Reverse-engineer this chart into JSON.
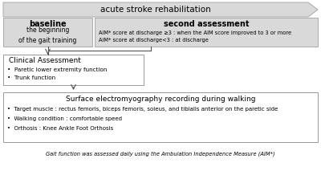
{
  "title_arrow": "acute stroke rehabilitation",
  "box1_title": "baseline",
  "box1_sub": "the beginning\nof the gait training",
  "box2_title": "second assessment",
  "box2_line1": "AIM* score at discharge ≥3 : when the AIM score improved to 3 or more",
  "box2_line2": "AIM* score at discharge<3 : at discharge",
  "box3_title": "Clinical Assessment",
  "box3_bullets": [
    "Paretic lower extremity function",
    "Trunk function"
  ],
  "box4_title": "Surface electromyography recording during walking",
  "box4_bullets": [
    "Target muscle : rectus femoris, biceps femoris, soleus, and tibialis anterior on the paretic side",
    "Walking condition : comfortable speed",
    "Orthosis : Knee Ankle Foot Orthosis"
  ],
  "footer": "Gait function was assessed daily using the Ambulation Independence Measure (AIM*)",
  "bg_color": "#ffffff",
  "arrow_fill": "#d9d9d9",
  "arrow_edge": "#aaaaaa",
  "box_edge": "#999999",
  "box_white_fill": "#ffffff",
  "line_color": "#555555"
}
